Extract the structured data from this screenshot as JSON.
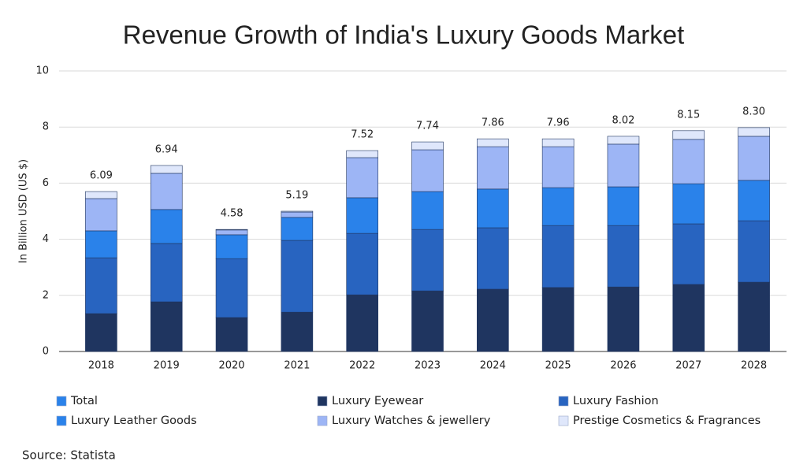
{
  "chart_data": {
    "type": "stacked_bar",
    "title": "Revenue Growth of India's Luxury Goods Market",
    "y_label": "In Billion USD (US $)",
    "source": "Source: Statista",
    "categories": [
      "2018",
      "2019",
      "2020",
      "2021",
      "2022",
      "2023",
      "2024",
      "2025",
      "2026",
      "2027",
      "2028"
    ],
    "total": {
      "name": "Total",
      "color": "#2a82ea",
      "values": [
        6.09,
        6.94,
        4.58,
        5.19,
        7.52,
        7.74,
        7.86,
        7.96,
        8.02,
        8.15,
        8.3
      ],
      "value_labels": [
        "6.09",
        "6.94",
        "4.58",
        "5.19",
        "7.52",
        "7.74",
        "7.86",
        "7.96",
        "8.02",
        "8.15",
        "8.30"
      ]
    },
    "series": [
      {
        "name": "Luxury Eyewear",
        "color": "#1f3560",
        "values": [
          1.35,
          1.77,
          1.21,
          1.4,
          2.02,
          2.16,
          2.22,
          2.28,
          2.3,
          2.39,
          2.47
        ]
      },
      {
        "name": "Luxury Fashion",
        "color": "#2864c0",
        "values": [
          1.99,
          2.08,
          2.1,
          2.56,
          2.19,
          2.19,
          2.19,
          2.21,
          2.19,
          2.16,
          2.19
        ]
      },
      {
        "name": "Luxury Leather Goods",
        "color": "#2a82ea",
        "values": [
          0.96,
          1.21,
          0.85,
          0.82,
          1.27,
          1.35,
          1.38,
          1.35,
          1.38,
          1.43,
          1.44
        ]
      },
      {
        "name": "Luxury Watches & jewellery",
        "color": "#9db5f5",
        "values": [
          1.15,
          1.29,
          0.17,
          0.19,
          1.43,
          1.49,
          1.51,
          1.46,
          1.52,
          1.58,
          1.57
        ]
      },
      {
        "name": "Prestige Cosmetics & Fragrances",
        "color": "#dfe7fb",
        "values": [
          0.25,
          0.28,
          0.02,
          0.03,
          0.25,
          0.28,
          0.28,
          0.28,
          0.28,
          0.31,
          0.31
        ]
      }
    ],
    "ylim": [
      0,
      10
    ],
    "yticks": [
      0,
      2,
      4,
      6,
      8,
      10
    ],
    "grid": true
  }
}
